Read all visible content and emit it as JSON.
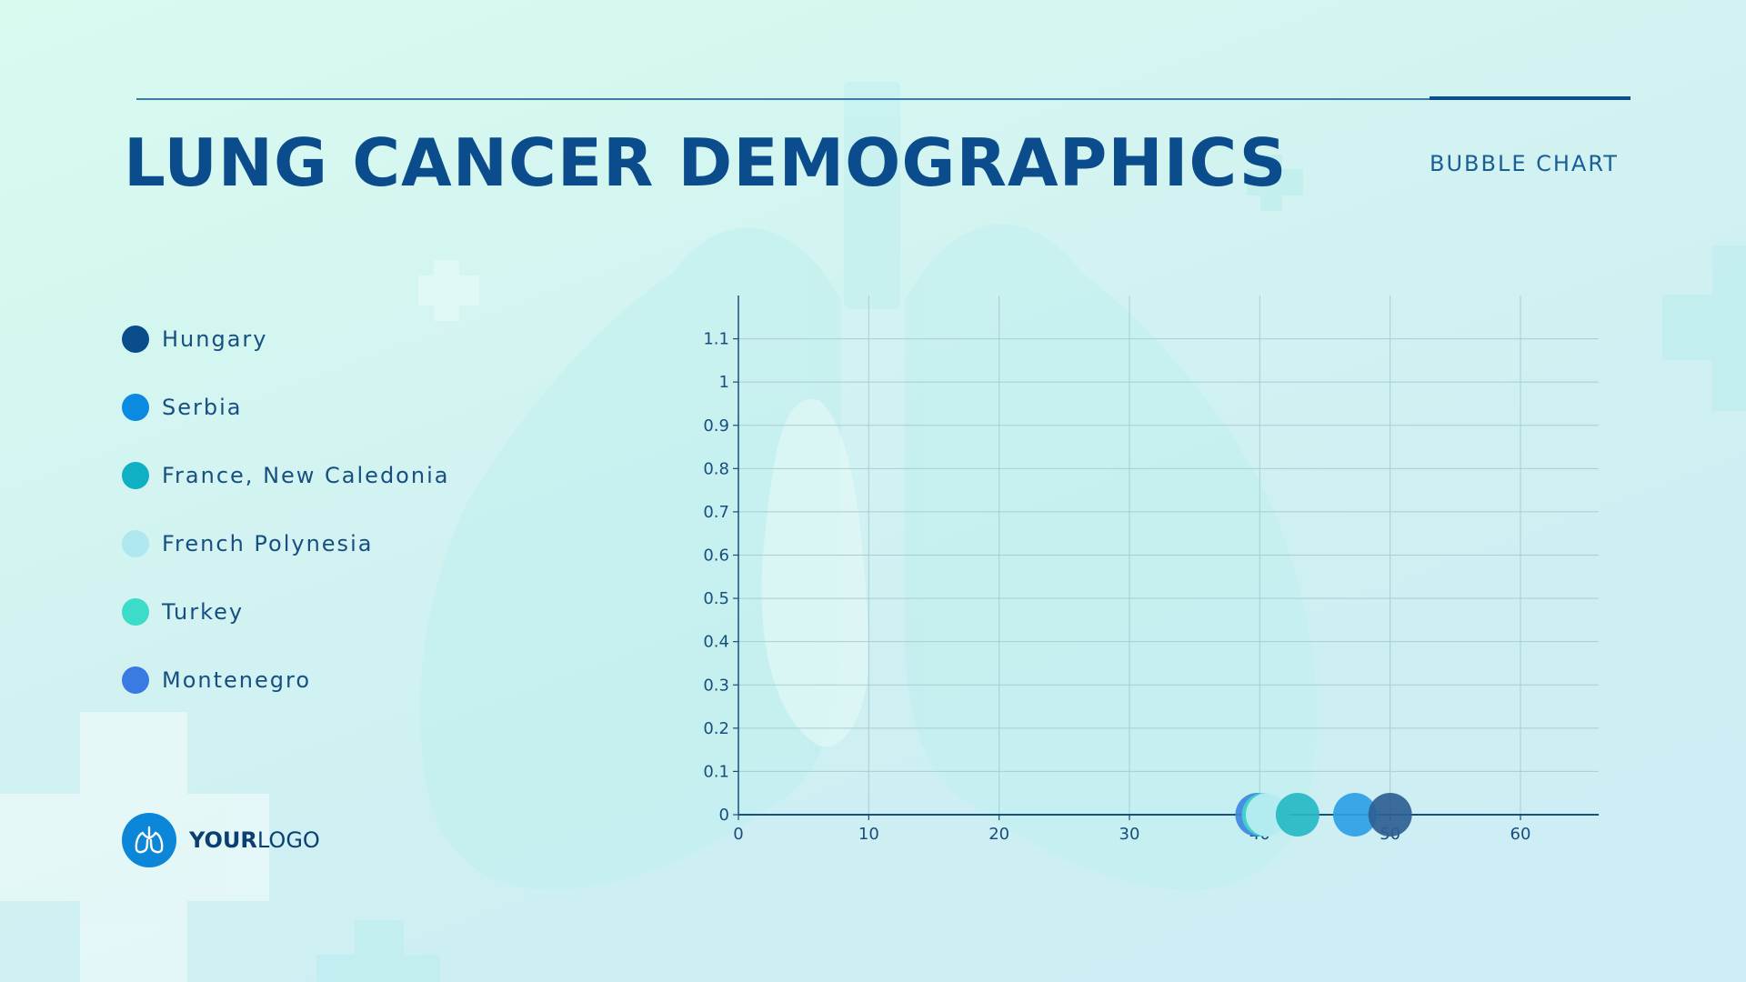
{
  "header": {
    "title": "LUNG CANCER DEMOGRAPHICS",
    "subtitle": "BUBBLE CHART"
  },
  "legend": [
    {
      "label": "Hungary",
      "color": "#0b4d8c"
    },
    {
      "label": "Serbia",
      "color": "#0a8ae0"
    },
    {
      "label": "France, New Caledonia",
      "color": "#0fb0c4"
    },
    {
      "label": "French Polynesia",
      "color": "#aee7ef"
    },
    {
      "label": "Turkey",
      "color": "#3ddcc9"
    },
    {
      "label": "Montenegro",
      "color": "#3a7be3"
    }
  ],
  "logo": {
    "bold": "YOUR",
    "regular": "LOGO",
    "icon": "lungs-icon"
  },
  "chart_data": {
    "type": "scatter",
    "xlim": [
      0,
      66
    ],
    "ylim": [
      0,
      1.2
    ],
    "x_ticks": [
      0,
      10,
      20,
      30,
      40,
      50,
      60
    ],
    "y_ticks": [
      0,
      0.1,
      0.2,
      0.3,
      0.4,
      0.5,
      0.6,
      0.7,
      0.8,
      0.9,
      1,
      1.1
    ],
    "grid": true,
    "legend_position": "left",
    "series": [
      {
        "name": "Hungary",
        "color": "#2f5f93",
        "x": 50,
        "y": 0,
        "size": 1
      },
      {
        "name": "Serbia",
        "color": "#2ea0e6",
        "x": 47.3,
        "y": 0,
        "size": 1
      },
      {
        "name": "France, New Caledonia",
        "color": "#25b9c4",
        "x": 42.9,
        "y": 0,
        "size": 1
      },
      {
        "name": "French Polynesia",
        "color": "#bdeef3",
        "x": 40.6,
        "y": 0,
        "size": 1
      },
      {
        "name": "Turkey",
        "color": "#40d6c8",
        "x": 40.3,
        "y": 0,
        "size": 1
      },
      {
        "name": "Montenegro",
        "color": "#3f86e2",
        "x": 39.8,
        "y": 0,
        "size": 1
      }
    ]
  }
}
